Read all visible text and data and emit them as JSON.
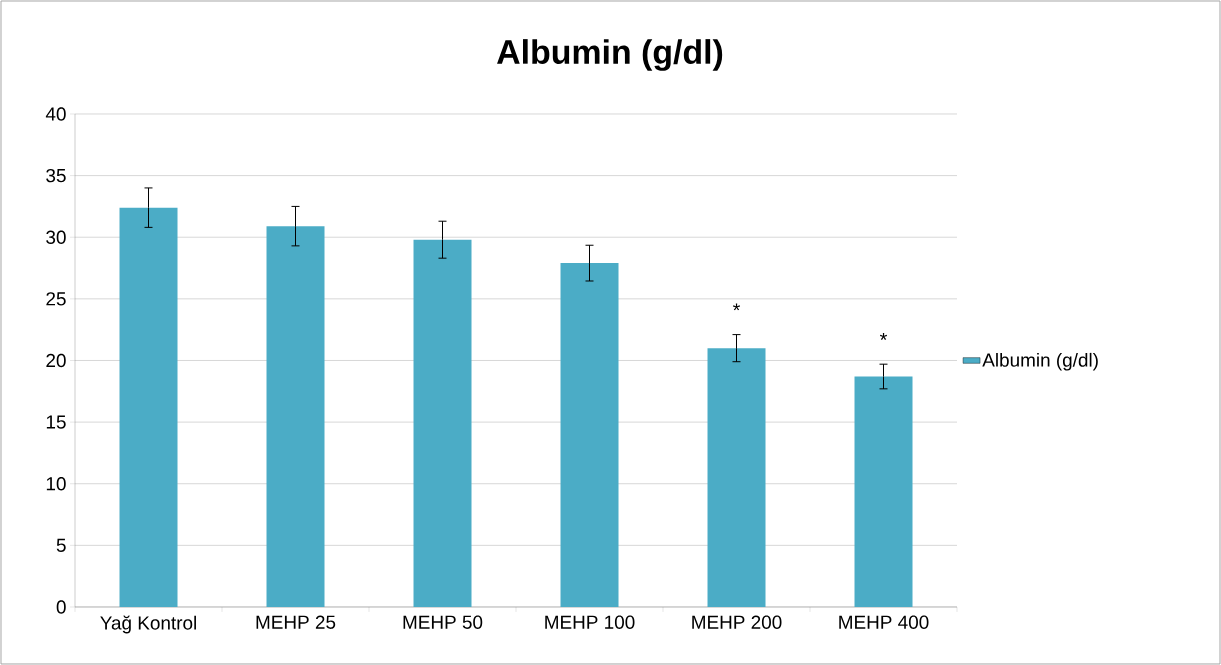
{
  "chart_data": {
    "type": "bar",
    "title": "Albumin (g/dl)",
    "categories": [
      "Yağ Kontrol",
      "MEHP 25",
      "MEHP 50",
      "MEHP 100",
      "MEHP 200",
      "MEHP 400"
    ],
    "series": [
      {
        "name": "Albumin (g/dl)",
        "color": "#4bacc6",
        "values": [
          32.4,
          30.9,
          29.8,
          27.9,
          21.0,
          18.7
        ],
        "errors": [
          1.6,
          1.6,
          1.5,
          1.45,
          1.1,
          1.0
        ]
      }
    ],
    "ylim": [
      0,
      40
    ],
    "yticks": [
      0,
      5,
      10,
      15,
      20,
      25,
      30,
      35,
      40
    ],
    "grid": "y",
    "legend": "right",
    "annotations": [
      "*",
      "*"
    ]
  }
}
